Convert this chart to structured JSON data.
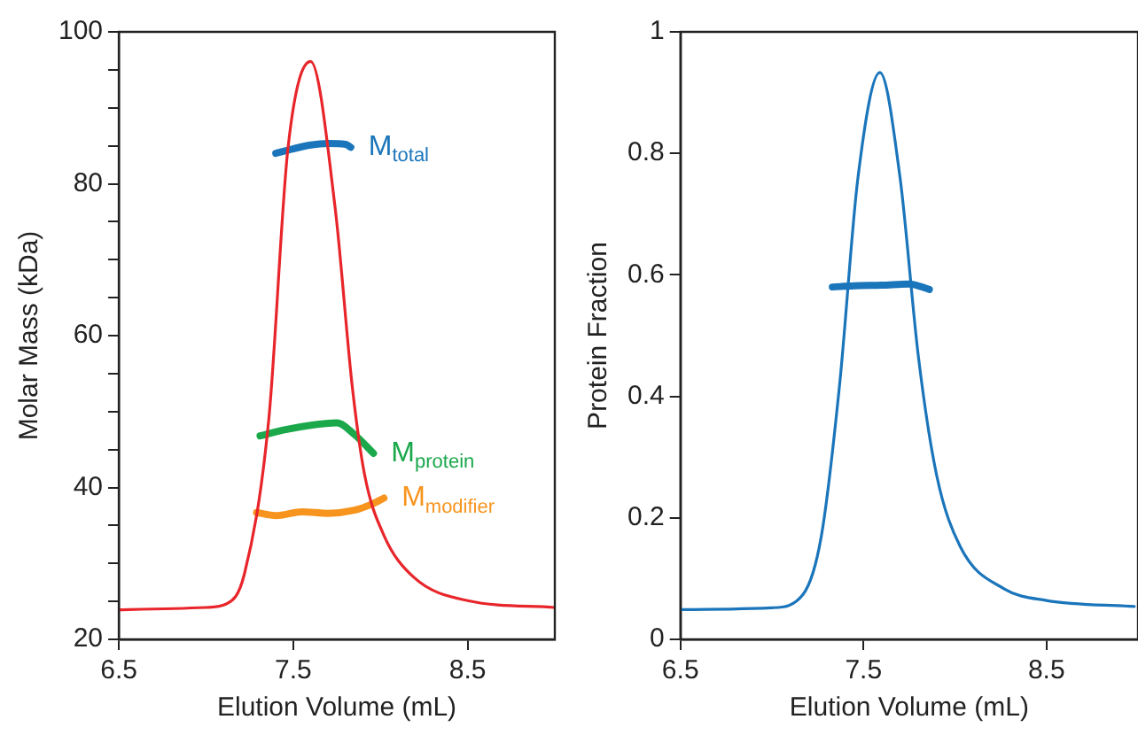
{
  "chart_data": [
    {
      "type": "line",
      "xlabel": "Elution Volume (mL)",
      "ylabel": "Molar Mass (kDa)",
      "xlim": [
        6.5,
        9.0
      ],
      "xticks": [
        6.5,
        7.5,
        8.5
      ],
      "ylim": [
        20,
        100
      ],
      "yticks": [
        20,
        {
          "value": 25,
          "label": null
        },
        {
          "value": 30,
          "label": null
        },
        {
          "value": 35,
          "label": null
        },
        40,
        {
          "value": 45,
          "label": null
        },
        {
          "value": 50,
          "label": null
        },
        {
          "value": 55,
          "label": null
        },
        60,
        {
          "value": 65,
          "label": null
        },
        {
          "value": 70,
          "label": null
        },
        {
          "value": 75,
          "label": null
        },
        80,
        {
          "value": 85,
          "label": null
        },
        {
          "value": 90,
          "label": null
        },
        {
          "value": 95,
          "label": null
        },
        100
      ],
      "grid": false,
      "legend": false,
      "marker": "none",
      "line_style": "solid",
      "series": [
        {
          "color": "#e8252a",
          "x": [
            6.5,
            7.0,
            7.12,
            7.22,
            7.36,
            7.47,
            7.6,
            7.74,
            7.84,
            7.91,
            8.02,
            8.19,
            8.5,
            9.0
          ],
          "values": [
            23.9,
            24.2,
            24.7,
            28.6,
            49,
            84.7,
            96.1,
            76.9,
            53,
            41.6,
            33.7,
            28.2,
            25.1,
            24.2
          ]
        },
        {
          "name": "M$_{total}$",
          "color": "#1a75bb",
          "x": [
            7.4,
            7.5,
            7.6,
            7.7,
            7.8,
            7.83
          ],
          "values": [
            84.0,
            84.6,
            85.1,
            85.3,
            85.2,
            84.8
          ]
        },
        {
          "name": "M$_{protein}$",
          "color": "#1aa84b",
          "x": [
            7.31,
            7.45,
            7.6,
            7.75,
            7.85,
            7.96
          ],
          "values": [
            46.8,
            47.6,
            48.2,
            48.5,
            47,
            44.5
          ]
        },
        {
          "name": "M$_{modifier}$",
          "color": "#f7941d",
          "x": [
            7.29,
            7.4,
            7.55,
            7.7,
            7.85,
            7.95,
            8.02
          ],
          "values": [
            36.7,
            36.3,
            36.8,
            36.6,
            37,
            37.8,
            38.6
          ]
        }
      ]
    },
    {
      "type": "line",
      "xlabel": "Elution Volume (mL)",
      "ylabel": "Protein Fraction",
      "xlim": [
        6.5,
        9.0
      ],
      "xticks": [
        6.5,
        7.5,
        8.5
      ],
      "ylim": [
        0,
        1
      ],
      "yticks": [
        0,
        0.2,
        0.4,
        0.6,
        0.8,
        1
      ],
      "grid": false,
      "legend": false,
      "marker": "none",
      "line_style": "solid",
      "series": [
        {
          "color": "#1a75bb",
          "x": [
            6.5,
            7.0,
            7.17,
            7.27,
            7.37,
            7.47,
            7.59,
            7.7,
            7.8,
            7.9,
            8.03,
            8.27,
            8.5,
            8.98
          ],
          "values": [
            0.049,
            0.052,
            0.074,
            0.17,
            0.42,
            0.76,
            0.933,
            0.76,
            0.466,
            0.27,
            0.152,
            0.083,
            0.064,
            0.054
          ]
        },
        {
          "color": "#1a75bb",
          "x": [
            7.33,
            7.45,
            7.6,
            7.75,
            7.86
          ],
          "values": [
            0.58,
            0.582,
            0.583,
            0.585,
            0.576
          ]
        }
      ]
    }
  ]
}
